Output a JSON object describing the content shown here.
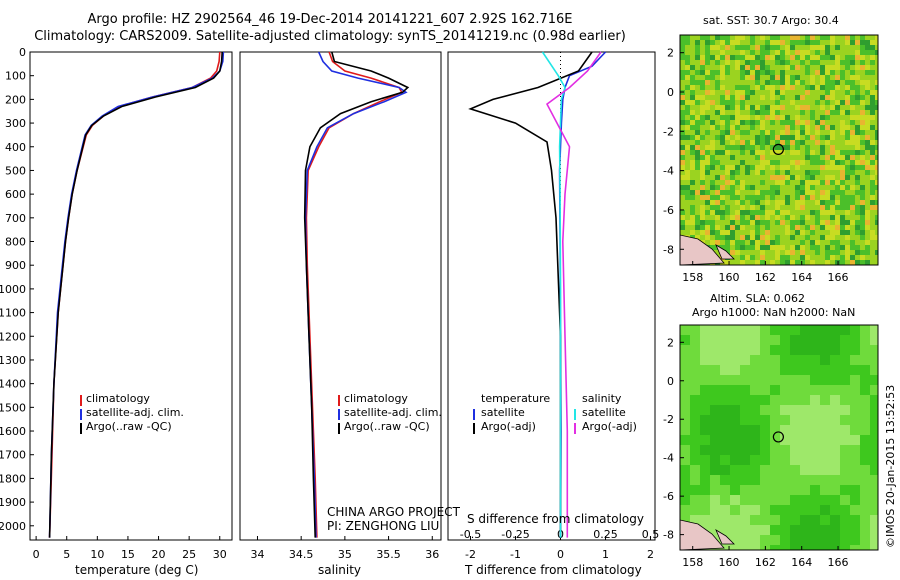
{
  "header": {
    "title_line1": "Argo profile: HZ 2902564_46 19-Dec-2014 20141221_607 2.92S 162.716E",
    "title_line2": "Climatology: CARS2009. Satellite-adjusted climatology: synTS_20141219.nc (0.98d earlier)"
  },
  "colors": {
    "climatology": "#e01b1b",
    "satellite": "#1f2fe0",
    "argo": "#000000",
    "sat_salinity": "#22e6e6",
    "argo_adj_salinity": "#e22fe2",
    "map_green": "#3ec81e",
    "land": "#e8c6c6"
  },
  "depth_ticks": [
    0,
    100,
    200,
    300,
    400,
    500,
    600,
    700,
    800,
    900,
    1000,
    1100,
    1200,
    1300,
    1400,
    1500,
    1600,
    1700,
    1800,
    1900,
    2000
  ],
  "panels": {
    "temperature": {
      "xlabel": "temperature (deg C)"
    },
    "salinity": {
      "xlabel": "salinity",
      "project_line1": "CHINA ARGO PROJECT",
      "project_line2": "PI: ZENGHONG LIU"
    },
    "difference": {
      "top_label": "S difference from climatology",
      "bottom_label": "T difference from climatology"
    }
  },
  "legends": {
    "temp": [
      "climatology",
      "satellite-adj. clim.",
      "Argo(..raw -QC)"
    ],
    "sal": [
      "climatology",
      "satellite-adj. clim.",
      "Argo(..raw -QC)"
    ],
    "diff_temp_title": "temperature",
    "diff_temp": [
      "satellite",
      "Argo(-adj)"
    ],
    "diff_sal_title": "salinity",
    "diff_sal": [
      "satellite",
      "Argo(-adj)"
    ]
  },
  "maps": {
    "sst_title": "sat. SST: 30.7  Argo: 30.4",
    "sla_title1": "Altim. SLA: 0.062",
    "sla_title2": "Argo h1000: NaN h2000: NaN",
    "lon_ticks": [
      158,
      160,
      162,
      164,
      166
    ],
    "lat_ticks": [
      2,
      0,
      -2,
      -4,
      -6,
      -8
    ],
    "argo_position": {
      "lon": 162.716,
      "lat": -2.92
    }
  },
  "timestamp": "©IMOS 20-Jan-2015 13:52:53",
  "chart_data": [
    {
      "type": "line",
      "title": "temperature",
      "xlabel": "temperature (deg C)",
      "ylabel": "",
      "xlim": [
        -1,
        32
      ],
      "ylim": [
        2060,
        0
      ],
      "xticks": [
        0,
        5,
        10,
        15,
        20,
        25,
        30
      ],
      "series": [
        {
          "name": "climatology",
          "x": [
            30.0,
            29.9,
            29.5,
            28.5,
            25.5,
            19.0,
            13.5,
            11.0,
            9.2,
            8.2,
            6.7,
            5.9,
            5.3,
            4.8,
            3.6,
            2.9,
            2.6,
            2.2
          ],
          "y": [
            0,
            40,
            80,
            110,
            150,
            190,
            230,
            270,
            310,
            350,
            500,
            600,
            700,
            800,
            1100,
            1400,
            1700,
            2050
          ]
        },
        {
          "name": "satellite-adj. clim.",
          "x": [
            30.6,
            30.5,
            30.0,
            28.8,
            25.5,
            19.0,
            13.4,
            10.8,
            9.0,
            8.0,
            6.6,
            5.8,
            5.2,
            4.7,
            3.5,
            2.9,
            2.5,
            2.2
          ],
          "y": [
            0,
            40,
            80,
            110,
            150,
            190,
            230,
            270,
            310,
            350,
            500,
            600,
            700,
            800,
            1100,
            1400,
            1700,
            2050
          ]
        },
        {
          "name": "Argo(..raw -QC)",
          "x": [
            30.4,
            30.3,
            30.0,
            29.0,
            26.0,
            19.5,
            14.0,
            11.0,
            9.1,
            8.1,
            6.7,
            5.9,
            5.3,
            4.8,
            3.6,
            2.9,
            2.5,
            2.2
          ],
          "y": [
            0,
            40,
            80,
            110,
            150,
            190,
            230,
            270,
            310,
            350,
            500,
            600,
            700,
            800,
            1100,
            1400,
            1700,
            2050
          ]
        }
      ]
    },
    {
      "type": "line",
      "title": "salinity",
      "xlabel": "salinity",
      "ylabel": "",
      "xlim": [
        33.8,
        36.1
      ],
      "ylim": [
        2060,
        0
      ],
      "xticks": [
        34,
        34.5,
        35,
        35.5,
        36
      ],
      "series": [
        {
          "name": "climatology",
          "x": [
            34.82,
            34.86,
            35.0,
            35.3,
            35.62,
            35.65,
            35.4,
            35.1,
            34.82,
            34.7,
            34.58,
            34.56,
            34.57,
            34.6,
            34.63,
            34.66,
            34.68
          ],
          "y": [
            0,
            40,
            80,
            110,
            150,
            170,
            210,
            260,
            320,
            400,
            500,
            700,
            900,
            1200,
            1500,
            1800,
            2050
          ]
        },
        {
          "name": "satellite-adj. clim.",
          "x": [
            34.7,
            34.75,
            34.85,
            35.15,
            35.62,
            35.7,
            35.45,
            35.1,
            34.8,
            34.68,
            34.57,
            34.55,
            34.56,
            34.59,
            34.62,
            34.65,
            34.67
          ],
          "y": [
            0,
            40,
            80,
            110,
            150,
            170,
            210,
            260,
            320,
            400,
            500,
            700,
            900,
            1200,
            1500,
            1800,
            2050
          ]
        },
        {
          "name": "Argo(..raw -QC)",
          "x": [
            34.85,
            34.88,
            35.3,
            35.5,
            35.72,
            35.66,
            35.3,
            34.95,
            34.72,
            34.6,
            34.55,
            34.54,
            34.56,
            34.59,
            34.62,
            34.64,
            34.66
          ],
          "y": [
            0,
            40,
            80,
            110,
            150,
            170,
            210,
            260,
            320,
            400,
            500,
            700,
            900,
            1200,
            1500,
            1800,
            2050
          ]
        }
      ]
    },
    {
      "type": "line",
      "title": "difference from climatology",
      "xlabel": "T difference from climatology",
      "x2label": "S difference from climatology",
      "ylabel": "",
      "xlim": [
        -2.5,
        2.1
      ],
      "ylim": [
        2060,
        0
      ],
      "xticks": [
        -2,
        -1,
        0,
        1,
        2
      ],
      "x2ticks": [
        -0.5,
        -0.25,
        0,
        0.25,
        0.5
      ],
      "series": [
        {
          "name": "temperature satellite",
          "x": [
            1.0,
            0.7,
            0.2,
            0.1,
            0.05,
            0.02,
            0.0,
            -0.02,
            -0.01,
            0.0,
            0.01,
            0.0
          ],
          "y": [
            0,
            60,
            100,
            150,
            200,
            300,
            400,
            500,
            800,
            1200,
            1600,
            2050
          ]
        },
        {
          "name": "temperature Argo(-adj)",
          "x": [
            0.7,
            0.4,
            -0.5,
            -1.5,
            -2.0,
            -1.0,
            -0.3,
            -0.2,
            -0.1,
            0.0,
            0.0,
            0.0
          ],
          "y": [
            0,
            80,
            150,
            200,
            240,
            300,
            380,
            500,
            700,
            1200,
            1600,
            2050
          ]
        },
        {
          "name": "salinity satellite",
          "x": [
            -0.4,
            -0.05,
            0.1,
            0.02,
            0.0,
            -0.02,
            -0.01,
            0.0,
            0.0,
            0.0
          ],
          "y": [
            0,
            100,
            150,
            200,
            300,
            400,
            600,
            1000,
            1500,
            2050
          ]
        },
        {
          "name": "salinity Argo(-adj)",
          "x": [
            0.9,
            0.6,
            0.2,
            -0.3,
            0.2,
            0.1,
            0.05,
            0.1,
            0.15,
            0.15
          ],
          "y": [
            0,
            80,
            150,
            220,
            400,
            600,
            800,
            1200,
            1600,
            2050
          ]
        }
      ]
    }
  ]
}
